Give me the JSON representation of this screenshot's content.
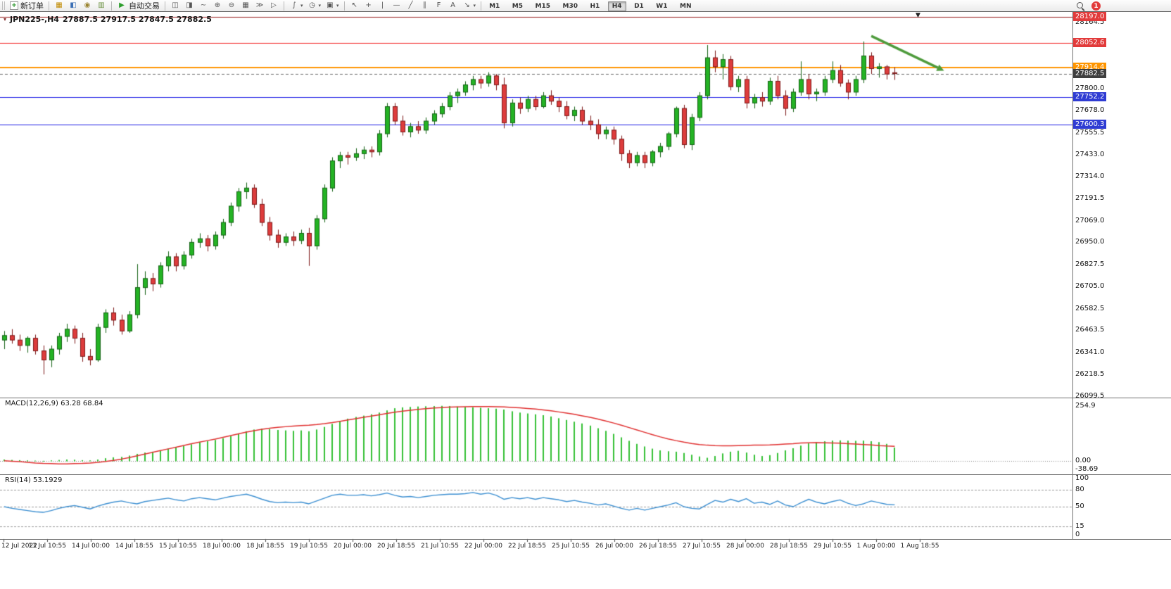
{
  "toolbar": {
    "new_order_label": "新订单",
    "auto_trading_label": "自动交易",
    "timeframes": [
      "M1",
      "M5",
      "M15",
      "M30",
      "H1",
      "H4",
      "D1",
      "W1",
      "MN"
    ],
    "active_timeframe": "H4",
    "notification_count": "1"
  },
  "icons": {
    "new_order": "+",
    "market_watch": "▦",
    "data_window": "◧",
    "navigator": "◉",
    "terminal": "▥",
    "auto_trading": "▶",
    "bar_chart": "◫",
    "candle_chart": "◨",
    "line_chart": "∼",
    "zoom_in": "⊕",
    "zoom_out": "⊖",
    "tile_windows": "▦",
    "autoscroll": "≫",
    "chart_shift": "▷",
    "indicators": "∫",
    "periods": "◷",
    "templates": "▣",
    "cursor": "↖",
    "crosshair": "+",
    "vertical_line": "|",
    "horizontal_line": "—",
    "trendline": "╱",
    "channel": "∥",
    "fibonacci": "F",
    "text_tool": "A",
    "arrow_tool": "↘",
    "dropdown": "▾",
    "oct_toggle": "▾",
    "chart_shift_marker": "▼"
  },
  "chart_data": {
    "type": "candlestick",
    "symbol": "JPN225-",
    "period": "H4",
    "header": "JPN225-,H4",
    "ohlc_text": "27887.5 27917.5 27847.5 27882.5",
    "ylim": [
      26092,
      28223
    ],
    "up_color": "#24b324",
    "up_border": "#136113",
    "down_color": "#dd3c3c",
    "down_border": "#7c1818",
    "candles": [
      [
        26410,
        26460,
        26360,
        26435
      ],
      [
        26435,
        26470,
        26390,
        26410
      ],
      [
        26410,
        26440,
        26350,
        26380
      ],
      [
        26380,
        26430,
        26340,
        26420
      ],
      [
        26420,
        26440,
        26330,
        26350
      ],
      [
        26350,
        26380,
        26220,
        26300
      ],
      [
        26300,
        26380,
        26260,
        26360
      ],
      [
        26360,
        26450,
        26330,
        26430
      ],
      [
        26430,
        26500,
        26400,
        26470
      ],
      [
        26470,
        26490,
        26390,
        26420
      ],
      [
        26420,
        26450,
        26290,
        26320
      ],
      [
        26320,
        26360,
        26270,
        26300
      ],
      [
        26300,
        26500,
        26290,
        26480
      ],
      [
        26480,
        26580,
        26450,
        26560
      ],
      [
        26560,
        26590,
        26490,
        26520
      ],
      [
        26520,
        26550,
        26440,
        26460
      ],
      [
        26460,
        26570,
        26450,
        26550
      ],
      [
        26550,
        26830,
        26530,
        26700
      ],
      [
        26700,
        26790,
        26660,
        26750
      ],
      [
        26750,
        26780,
        26680,
        26720
      ],
      [
        26720,
        26840,
        26700,
        26820
      ],
      [
        26820,
        26900,
        26790,
        26870
      ],
      [
        26870,
        26890,
        26790,
        26820
      ],
      [
        26820,
        26900,
        26800,
        26880
      ],
      [
        26880,
        26970,
        26860,
        26950
      ],
      [
        26950,
        27000,
        26920,
        26970
      ],
      [
        26970,
        26990,
        26900,
        26930
      ],
      [
        26930,
        27010,
        26910,
        26990
      ],
      [
        26990,
        27080,
        26970,
        27060
      ],
      [
        27060,
        27170,
        27040,
        27150
      ],
      [
        27150,
        27250,
        27120,
        27230
      ],
      [
        27230,
        27280,
        27190,
        27250
      ],
      [
        27250,
        27270,
        27140,
        27160
      ],
      [
        27160,
        27190,
        27040,
        27060
      ],
      [
        27060,
        27090,
        26960,
        26990
      ],
      [
        26990,
        27020,
        26920,
        26950
      ],
      [
        26950,
        27000,
        26930,
        26980
      ],
      [
        26980,
        27010,
        26930,
        26960
      ],
      [
        26960,
        27020,
        26940,
        27000
      ],
      [
        27000,
        27030,
        26820,
        26930
      ],
      [
        26930,
        27100,
        26910,
        27080
      ],
      [
        27080,
        27270,
        27060,
        27250
      ],
      [
        27250,
        27420,
        27230,
        27400
      ],
      [
        27400,
        27450,
        27360,
        27430
      ],
      [
        27430,
        27450,
        27380,
        27420
      ],
      [
        27420,
        27470,
        27400,
        27440
      ],
      [
        27440,
        27480,
        27410,
        27460
      ],
      [
        27460,
        27480,
        27420,
        27450
      ],
      [
        27450,
        27570,
        27430,
        27550
      ],
      [
        27550,
        27720,
        27530,
        27700
      ],
      [
        27700,
        27720,
        27600,
        27620
      ],
      [
        27620,
        27650,
        27540,
        27560
      ],
      [
        27560,
        27610,
        27530,
        27590
      ],
      [
        27590,
        27620,
        27550,
        27570
      ],
      [
        27570,
        27640,
        27550,
        27620
      ],
      [
        27620,
        27680,
        27600,
        27660
      ],
      [
        27660,
        27720,
        27640,
        27700
      ],
      [
        27700,
        27780,
        27680,
        27760
      ],
      [
        27760,
        27800,
        27720,
        27780
      ],
      [
        27780,
        27840,
        27760,
        27820
      ],
      [
        27820,
        27870,
        27790,
        27850
      ],
      [
        27850,
        27870,
        27800,
        27830
      ],
      [
        27830,
        27890,
        27810,
        27870
      ],
      [
        27870,
        27880,
        27790,
        27820
      ],
      [
        27820,
        27860,
        27580,
        27610
      ],
      [
        27610,
        27740,
        27590,
        27720
      ],
      [
        27720,
        27750,
        27660,
        27690
      ],
      [
        27690,
        27760,
        27670,
        27740
      ],
      [
        27740,
        27760,
        27680,
        27700
      ],
      [
        27700,
        27780,
        27690,
        27760
      ],
      [
        27760,
        27790,
        27710,
        27730
      ],
      [
        27730,
        27750,
        27670,
        27700
      ],
      [
        27700,
        27730,
        27630,
        27650
      ],
      [
        27650,
        27700,
        27620,
        27680
      ],
      [
        27680,
        27700,
        27600,
        27620
      ],
      [
        27620,
        27650,
        27570,
        27600
      ],
      [
        27600,
        27630,
        27520,
        27550
      ],
      [
        27550,
        27590,
        27520,
        27570
      ],
      [
        27570,
        27590,
        27490,
        27520
      ],
      [
        27520,
        27540,
        27400,
        27440
      ],
      [
        27440,
        27460,
        27360,
        27390
      ],
      [
        27390,
        27450,
        27370,
        27430
      ],
      [
        27430,
        27450,
        27360,
        27390
      ],
      [
        27390,
        27460,
        27370,
        27450
      ],
      [
        27450,
        27500,
        27420,
        27480
      ],
      [
        27480,
        27560,
        27460,
        27550
      ],
      [
        27550,
        27700,
        27530,
        27690
      ],
      [
        27690,
        27710,
        27470,
        27490
      ],
      [
        27490,
        27660,
        27460,
        27640
      ],
      [
        27640,
        27780,
        27620,
        27760
      ],
      [
        27760,
        28040,
        27740,
        27970
      ],
      [
        27970,
        28010,
        27890,
        27920
      ],
      [
        27920,
        27990,
        27850,
        27960
      ],
      [
        27960,
        27980,
        27790,
        27810
      ],
      [
        27810,
        27870,
        27780,
        27850
      ],
      [
        27850,
        27870,
        27690,
        27720
      ],
      [
        27720,
        27770,
        27690,
        27750
      ],
      [
        27750,
        27780,
        27700,
        27730
      ],
      [
        27730,
        27860,
        27710,
        27840
      ],
      [
        27840,
        27870,
        27740,
        27760
      ],
      [
        27760,
        27790,
        27650,
        27690
      ],
      [
        27690,
        27800,
        27670,
        27780
      ],
      [
        27780,
        27950,
        27760,
        27850
      ],
      [
        27850,
        27880,
        27740,
        27770
      ],
      [
        27770,
        27800,
        27730,
        27780
      ],
      [
        27780,
        27870,
        27760,
        27850
      ],
      [
        27850,
        27950,
        27830,
        27900
      ],
      [
        27900,
        27930,
        27810,
        27830
      ],
      [
        27830,
        27850,
        27740,
        27780
      ],
      [
        27780,
        27870,
        27760,
        27850
      ],
      [
        27850,
        28060,
        27830,
        27980
      ],
      [
        27980,
        28000,
        27880,
        27910
      ],
      [
        27910,
        27940,
        27860,
        27920
      ],
      [
        27920,
        27930,
        27850,
        27880
      ],
      [
        27887.5,
        27917.5,
        27847.5,
        27882.5
      ]
    ],
    "levels": [
      {
        "price": 28197.0,
        "label": "28197.0",
        "line_color": "#9b2222",
        "badge_bg": "#e23b3b",
        "width": 1
      },
      {
        "price": 28052.6,
        "label": "28052.6",
        "line_color": "#f21f1f",
        "badge_bg": "#e23b3b",
        "width": 1
      },
      {
        "price": 27914.4,
        "label": "27914.4",
        "line_color": "#ff9500",
        "badge_bg": "#ff9500",
        "width": 2
      },
      {
        "price": 27752.2,
        "label": "27752.2",
        "line_color": "#2222e6",
        "badge_bg": "#2f3cd3",
        "width": 1
      },
      {
        "price": 27600.3,
        "label": "27600.3",
        "line_color": "#2222e6",
        "badge_bg": "#2f3cd3",
        "width": 1
      }
    ],
    "current_price": {
      "price": 27882.5,
      "label": "27882.5",
      "badge_bg": "#3f3f3f",
      "line_color": "#666666"
    },
    "y_ticks": [
      "28164.5",
      "28042.0",
      "27919.5",
      "27800.0",
      "27678.0",
      "27555.5",
      "27433.0",
      "27314.0",
      "27191.5",
      "27069.0",
      "26950.0",
      "26827.5",
      "26705.0",
      "26582.5",
      "26463.5",
      "26341.0",
      "26218.5",
      "26099.5"
    ],
    "x_labels": [
      "12 Jul 2022",
      "13 Jul 10:55",
      "14 Jul 00:00",
      "14 Jul 18:55",
      "15 Jul 10:55",
      "18 Jul 00:00",
      "18 Jul 18:55",
      "19 Jul 10:55",
      "20 Jul 00:00",
      "20 Jul 18:55",
      "21 Jul 10:55",
      "22 Jul 00:00",
      "22 Jul 18:55",
      "25 Jul 10:55",
      "26 Jul 00:00",
      "26 Jul 18:55",
      "27 Jul 10:55",
      "28 Jul 00:00",
      "28 Jul 18:55",
      "29 Jul 10:55",
      "1 Aug 00:00",
      "1 Aug 18:55"
    ],
    "arrow": {
      "from_index": 111,
      "from_price": 28090,
      "to_index": 119.5,
      "to_price": 27915,
      "color": "#4e9b3c"
    },
    "macd": {
      "label": "MACD(12,26,9) 63.28 68.84",
      "ylim": [
        -60,
        293
      ],
      "hist_color": "#35c135",
      "signal_color": "#e03030",
      "scale": [
        {
          "label": "254.9",
          "value": 254.9
        },
        {
          "label": "0.00",
          "value": 0
        },
        {
          "label": "-38.69",
          "value": -38.69
        }
      ],
      "histogram": [
        8,
        6,
        5,
        4,
        3,
        2,
        4,
        6,
        8,
        7,
        5,
        4,
        8,
        14,
        18,
        20,
        26,
        34,
        40,
        44,
        50,
        58,
        64,
        70,
        78,
        86,
        92,
        98,
        106,
        116,
        128,
        138,
        146,
        150,
        148,
        144,
        142,
        140,
        142,
        138,
        146,
        158,
        172,
        186,
        196,
        204,
        210,
        216,
        224,
        234,
        244,
        248,
        250,
        252,
        253,
        254,
        255,
        254,
        252,
        250,
        248,
        246,
        244,
        242,
        238,
        230,
        224,
        220,
        216,
        212,
        206,
        198,
        190,
        182,
        174,
        164,
        152,
        140,
        126,
        110,
        94,
        80,
        68,
        58,
        50,
        46,
        44,
        38,
        30,
        22,
        16,
        24,
        36,
        44,
        48,
        40,
        30,
        24,
        28,
        38,
        50,
        60,
        72,
        82,
        88,
        92,
        95,
        96,
        95,
        94,
        95,
        92,
        88,
        80,
        63
      ],
      "signal": [
        2,
        0,
        -2,
        -5,
        -8,
        -10,
        -11,
        -12,
        -12,
        -11,
        -10,
        -8,
        -5,
        -1,
        4,
        10,
        17,
        25,
        33,
        41,
        49,
        57,
        65,
        73,
        81,
        88,
        95,
        102,
        110,
        118,
        126,
        134,
        141,
        147,
        152,
        156,
        159,
        162,
        164,
        166,
        169,
        173,
        178,
        184,
        190,
        196,
        202,
        208,
        214,
        220,
        226,
        231,
        235,
        239,
        242,
        245,
        247,
        249,
        250,
        251,
        252,
        252,
        252,
        251,
        250,
        248,
        246,
        243,
        240,
        236,
        232,
        227,
        222,
        216,
        209,
        202,
        194,
        185,
        176,
        166,
        155,
        144,
        133,
        122,
        112,
        103,
        95,
        88,
        82,
        77,
        74,
        72,
        71,
        71,
        72,
        73,
        74,
        74,
        75,
        77,
        79,
        81,
        84,
        85,
        86,
        85,
        84,
        83,
        81,
        79,
        77,
        75,
        72,
        70,
        69
      ]
    },
    "rsi": {
      "label": "RSI(14) 53.1929",
      "ylim": [
        -7,
        107
      ],
      "line_color": "#3c8fd1",
      "scale": [
        {
          "label": "100",
          "value": 100
        },
        {
          "label": "80",
          "value": 80
        },
        {
          "label": "50",
          "value": 50
        },
        {
          "label": "15",
          "value": 15
        },
        {
          "label": "0",
          "value": 0
        }
      ],
      "levels": [
        80,
        50,
        15
      ],
      "values": [
        50,
        47,
        45,
        43,
        41,
        40,
        43,
        47,
        50,
        52,
        49,
        46,
        51,
        55,
        58,
        60,
        57,
        55,
        59,
        61,
        63,
        65,
        62,
        60,
        64,
        66,
        64,
        62,
        65,
        68,
        70,
        72,
        68,
        63,
        59,
        57,
        58,
        57,
        58,
        55,
        60,
        65,
        70,
        72,
        70,
        70,
        71,
        69,
        71,
        74,
        70,
        67,
        68,
        66,
        68,
        70,
        71,
        72,
        72,
        73,
        75,
        72,
        74,
        70,
        63,
        66,
        64,
        66,
        63,
        66,
        64,
        62,
        59,
        61,
        58,
        56,
        53,
        55,
        51,
        47,
        44,
        47,
        44,
        47,
        50,
        53,
        57,
        50,
        47,
        46,
        54,
        61,
        58,
        63,
        59,
        64,
        56,
        58,
        54,
        60,
        53,
        50,
        57,
        63,
        58,
        55,
        59,
        62,
        56,
        52,
        55,
        60,
        57,
        54,
        53.2
      ]
    }
  }
}
